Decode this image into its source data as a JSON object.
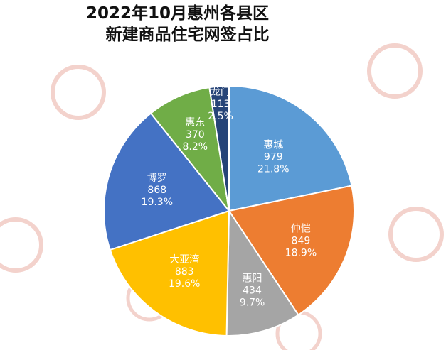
{
  "title": {
    "line1": "2022年10月惠州各县区",
    "line2": "新建商品住宅网签占比"
  },
  "chart_data": {
    "type": "pie",
    "title": "2022年10月惠州各县区新建商品住宅网签占比",
    "slices": [
      {
        "name": "惠城",
        "value": 979,
        "pct": "21.8%",
        "color": "#5b9bd5"
      },
      {
        "name": "仲恺",
        "value": 849,
        "pct": "18.9%",
        "color": "#ed7d31"
      },
      {
        "name": "惠阳",
        "value": 434,
        "pct": "9.7%",
        "color": "#a5a5a5"
      },
      {
        "name": "大亚湾",
        "value": 883,
        "pct": "19.6%",
        "color": "#ffc000"
      },
      {
        "name": "博罗",
        "value": 868,
        "pct": "19.3%",
        "color": "#4472c4"
      },
      {
        "name": "惠东",
        "value": 370,
        "pct": "8.2%",
        "color": "#70ad47"
      },
      {
        "name": "龙门",
        "value": 113,
        "pct": "2.5%",
        "color": "#264478"
      }
    ],
    "legend": "none",
    "labels": "inside"
  }
}
